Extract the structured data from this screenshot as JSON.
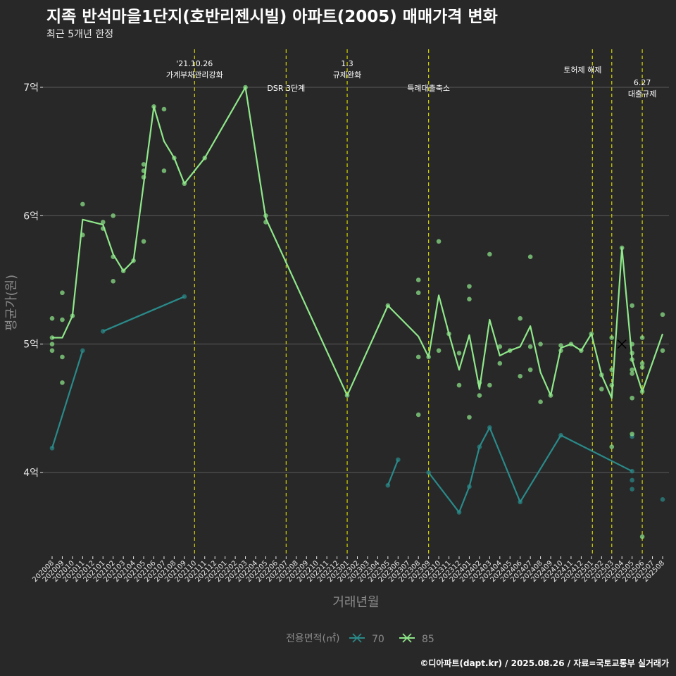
{
  "title": "지족 반석마을1단지(호반리젠시빌) 아파트(2005) 매매가격 변화",
  "subtitle": "최근 5개년 한정",
  "caption": "©디아파트(dapt.kr) / 2025.08.26 / 자료=국토교통부 실거래가",
  "colors": {
    "background": "#282828",
    "grid": "#5a5a5a",
    "axis_text": "#e6e6e6",
    "axis_title": "#8a8a8a",
    "annotation_line": "#d4d400",
    "series_70": "#2a8a8a",
    "series_85": "#8fe88a"
  },
  "chart_data": {
    "type": "line",
    "xlabel": "거래년월",
    "ylabel": "평균가(원)",
    "y_unit_note": "억 원",
    "ylim": [
      3.35,
      7.35
    ],
    "yticks": [
      4,
      5,
      6,
      7
    ],
    "ytick_labels": [
      "4억",
      "5억",
      "6억",
      "7억"
    ],
    "x_categories": [
      "202008",
      "202009",
      "202010",
      "202011",
      "202012",
      "202101",
      "202102",
      "202103",
      "202104",
      "202105",
      "202106",
      "202107",
      "202108",
      "202109",
      "202110",
      "202111",
      "202112",
      "202201",
      "202202",
      "202203",
      "202204",
      "202205",
      "202206",
      "202207",
      "202208",
      "202209",
      "202210",
      "202211",
      "202212",
      "202301",
      "202302",
      "202303",
      "202304",
      "202305",
      "202306",
      "202307",
      "202308",
      "202309",
      "202310",
      "202311",
      "202312",
      "202401",
      "202402",
      "202403",
      "202404",
      "202405",
      "202406",
      "202407",
      "202408",
      "202409",
      "202410",
      "202411",
      "202412",
      "202501",
      "202502",
      "202503",
      "202504",
      "202505",
      "202506",
      "202507",
      "202508"
    ],
    "legend": {
      "title": "전용면적(㎡)",
      "position": "bottom",
      "entries": [
        "70",
        "85"
      ]
    },
    "grid": true,
    "series": [
      {
        "name": "70",
        "line": [
          {
            "x": "202008",
            "y": 4.19
          },
          {
            "x": "202011",
            "y": 4.95
          },
          {
            "x": "__gap__",
            "y": null
          },
          {
            "x": "202101",
            "y": 5.1
          },
          {
            "x": "202109",
            "y": 5.37
          },
          {
            "x": "__gap__",
            "y": null
          },
          {
            "x": "202305",
            "y": 3.9
          },
          {
            "x": "202306",
            "y": 4.1
          },
          {
            "x": "__gap__",
            "y": null
          },
          {
            "x": "202309",
            "y": 4.0
          },
          {
            "x": "202312",
            "y": 3.69
          },
          {
            "x": "202401",
            "y": 3.89
          },
          {
            "x": "202402",
            "y": 4.2
          },
          {
            "x": "202403",
            "y": 4.35
          },
          {
            "x": "202406",
            "y": 3.77
          },
          {
            "x": "202410",
            "y": 4.29
          },
          {
            "x": "202505",
            "y": 4.01
          }
        ],
        "points": [
          {
            "x": "202008",
            "y": 4.19
          },
          {
            "x": "202011",
            "y": 4.95
          },
          {
            "x": "202101",
            "y": 5.1
          },
          {
            "x": "202109",
            "y": 5.37
          },
          {
            "x": "202305",
            "y": 3.9
          },
          {
            "x": "202306",
            "y": 4.1
          },
          {
            "x": "202309",
            "y": 4.0
          },
          {
            "x": "202312",
            "y": 3.69
          },
          {
            "x": "202401",
            "y": 3.89
          },
          {
            "x": "202402",
            "y": 4.2
          },
          {
            "x": "202403",
            "y": 4.35
          },
          {
            "x": "202406",
            "y": 3.77
          },
          {
            "x": "202410",
            "y": 4.29
          },
          {
            "x": "202505",
            "y": 4.28
          },
          {
            "x": "202505",
            "y": 4.01
          },
          {
            "x": "202505",
            "y": 3.94
          },
          {
            "x": "202505",
            "y": 3.87
          },
          {
            "x": "202508",
            "y": 3.79
          }
        ]
      },
      {
        "name": "85",
        "line": [
          {
            "x": "202008",
            "y": 5.05
          },
          {
            "x": "202009",
            "y": 5.05
          },
          {
            "x": "202010",
            "y": 5.22
          },
          {
            "x": "202011",
            "y": 5.97
          },
          {
            "x": "202101",
            "y": 5.93
          },
          {
            "x": "202102",
            "y": 5.7
          },
          {
            "x": "202103",
            "y": 5.57
          },
          {
            "x": "202104",
            "y": 5.65
          },
          {
            "x": "202106",
            "y": 6.85
          },
          {
            "x": "202107",
            "y": 6.58
          },
          {
            "x": "202108",
            "y": 6.45
          },
          {
            "x": "202109",
            "y": 6.25
          },
          {
            "x": "202111",
            "y": 6.45
          },
          {
            "x": "202203",
            "y": 7.0
          },
          {
            "x": "202205",
            "y": 5.98
          },
          {
            "x": "202301",
            "y": 4.6
          },
          {
            "x": "202305",
            "y": 5.3
          },
          {
            "x": "202308",
            "y": 5.06
          },
          {
            "x": "202309",
            "y": 4.9
          },
          {
            "x": "202310",
            "y": 5.38
          },
          {
            "x": "202311",
            "y": 5.08
          },
          {
            "x": "202312",
            "y": 4.8
          },
          {
            "x": "202401",
            "y": 5.07
          },
          {
            "x": "202402",
            "y": 4.65
          },
          {
            "x": "202403",
            "y": 5.19
          },
          {
            "x": "202404",
            "y": 4.91
          },
          {
            "x": "202405",
            "y": 4.95
          },
          {
            "x": "202406",
            "y": 4.98
          },
          {
            "x": "202407",
            "y": 5.14
          },
          {
            "x": "202408",
            "y": 4.78
          },
          {
            "x": "202409",
            "y": 4.6
          },
          {
            "x": "202410",
            "y": 4.97
          },
          {
            "x": "202411",
            "y": 5.0
          },
          {
            "x": "202412",
            "y": 4.95
          },
          {
            "x": "202501",
            "y": 5.08
          },
          {
            "x": "202502",
            "y": 4.76
          },
          {
            "x": "202503",
            "y": 4.58
          },
          {
            "x": "202504",
            "y": 5.75
          },
          {
            "x": "202505",
            "y": 4.88
          },
          {
            "x": "202506",
            "y": 4.63
          },
          {
            "x": "202508",
            "y": 5.08
          }
        ],
        "points": [
          {
            "x": "202008",
            "y": 5.2
          },
          {
            "x": "202008",
            "y": 5.05
          },
          {
            "x": "202008",
            "y": 5.0
          },
          {
            "x": "202008",
            "y": 4.95
          },
          {
            "x": "202009",
            "y": 5.4
          },
          {
            "x": "202009",
            "y": 5.19
          },
          {
            "x": "202009",
            "y": 4.9
          },
          {
            "x": "202009",
            "y": 4.7
          },
          {
            "x": "202010",
            "y": 5.22
          },
          {
            "x": "202011",
            "y": 6.09
          },
          {
            "x": "202011",
            "y": 5.85
          },
          {
            "x": "202101",
            "y": 5.95
          },
          {
            "x": "202101",
            "y": 5.9
          },
          {
            "x": "202102",
            "y": 6.0
          },
          {
            "x": "202102",
            "y": 5.68
          },
          {
            "x": "202102",
            "y": 5.49
          },
          {
            "x": "202103",
            "y": 5.57
          },
          {
            "x": "202104",
            "y": 5.65
          },
          {
            "x": "202105",
            "y": 6.4
          },
          {
            "x": "202105",
            "y": 6.35
          },
          {
            "x": "202105",
            "y": 6.3
          },
          {
            "x": "202105",
            "y": 5.8
          },
          {
            "x": "202106",
            "y": 6.85
          },
          {
            "x": "202107",
            "y": 6.83
          },
          {
            "x": "202107",
            "y": 6.35
          },
          {
            "x": "202108",
            "y": 6.45
          },
          {
            "x": "202109",
            "y": 6.25
          },
          {
            "x": "202111",
            "y": 6.45
          },
          {
            "x": "202203",
            "y": 7.0
          },
          {
            "x": "202205",
            "y": 6.0
          },
          {
            "x": "202205",
            "y": 5.95
          },
          {
            "x": "202301",
            "y": 4.6
          },
          {
            "x": "202305",
            "y": 5.3
          },
          {
            "x": "202308",
            "y": 5.5
          },
          {
            "x": "202308",
            "y": 5.4
          },
          {
            "x": "202308",
            "y": 4.9
          },
          {
            "x": "202308",
            "y": 4.45
          },
          {
            "x": "202309",
            "y": 4.9
          },
          {
            "x": "202310",
            "y": 5.8
          },
          {
            "x": "202310",
            "y": 4.95
          },
          {
            "x": "202311",
            "y": 5.08
          },
          {
            "x": "202312",
            "y": 4.93
          },
          {
            "x": "202312",
            "y": 4.68
          },
          {
            "x": "202401",
            "y": 5.45
          },
          {
            "x": "202401",
            "y": 5.35
          },
          {
            "x": "202401",
            "y": 4.43
          },
          {
            "x": "202402",
            "y": 4.7
          },
          {
            "x": "202402",
            "y": 4.6
          },
          {
            "x": "202403",
            "y": 5.7
          },
          {
            "x": "202403",
            "y": 4.68
          },
          {
            "x": "202404",
            "y": 4.98
          },
          {
            "x": "202404",
            "y": 4.85
          },
          {
            "x": "202405",
            "y": 4.95
          },
          {
            "x": "202406",
            "y": 5.2
          },
          {
            "x": "202406",
            "y": 4.75
          },
          {
            "x": "202407",
            "y": 5.68
          },
          {
            "x": "202407",
            "y": 4.98
          },
          {
            "x": "202407",
            "y": 4.8
          },
          {
            "x": "202408",
            "y": 5.0
          },
          {
            "x": "202408",
            "y": 4.55
          },
          {
            "x": "202409",
            "y": 4.6
          },
          {
            "x": "202410",
            "y": 4.99
          },
          {
            "x": "202410",
            "y": 4.95
          },
          {
            "x": "202411",
            "y": 5.0
          },
          {
            "x": "202412",
            "y": 4.95
          },
          {
            "x": "202501",
            "y": 5.08
          },
          {
            "x": "202502",
            "y": 4.76
          },
          {
            "x": "202502",
            "y": 4.65
          },
          {
            "x": "202503",
            "y": 5.05
          },
          {
            "x": "202503",
            "y": 4.8
          },
          {
            "x": "202503",
            "y": 4.68
          },
          {
            "x": "202503",
            "y": 4.2
          },
          {
            "x": "202504",
            "y": 5.75
          },
          {
            "x": "202505",
            "y": 5.3
          },
          {
            "x": "202505",
            "y": 5.0
          },
          {
            "x": "202505",
            "y": 4.93
          },
          {
            "x": "202505",
            "y": 4.88
          },
          {
            "x": "202505",
            "y": 4.8
          },
          {
            "x": "202505",
            "y": 4.77
          },
          {
            "x": "202505",
            "y": 4.58
          },
          {
            "x": "202505",
            "y": 4.3
          },
          {
            "x": "202506",
            "y": 5.05
          },
          {
            "x": "202506",
            "y": 4.85
          },
          {
            "x": "202506",
            "y": 4.82
          },
          {
            "x": "202506",
            "y": 4.63
          },
          {
            "x": "202506",
            "y": 3.5
          },
          {
            "x": "202508",
            "y": 5.23
          },
          {
            "x": "202508",
            "y": 4.95
          }
        ]
      }
    ],
    "special_marker": {
      "x": "202504",
      "y": 5.0,
      "symbol": "x",
      "color": "#000000"
    },
    "annotations": [
      {
        "x": "202110",
        "lines": [
          "'21.10.26",
          "가계부채관리강화"
        ],
        "row": "high"
      },
      {
        "x": "202207",
        "lines": [
          "DSR 3단계"
        ],
        "row": "low"
      },
      {
        "x": "202301",
        "lines": [
          "1.3",
          "규제완화"
        ],
        "row": "high"
      },
      {
        "x": "202309",
        "lines": [
          "특례대출축소"
        ],
        "row": "low"
      },
      {
        "x": "202502",
        "lines": [
          "토허제 해제"
        ],
        "row": "mid",
        "line_offset": 0.0
      },
      {
        "x": "202503",
        "lines": [],
        "row": "none"
      },
      {
        "x": "202506",
        "lines": [
          "6.27",
          "대출규제"
        ],
        "row": "mid2"
      }
    ]
  }
}
